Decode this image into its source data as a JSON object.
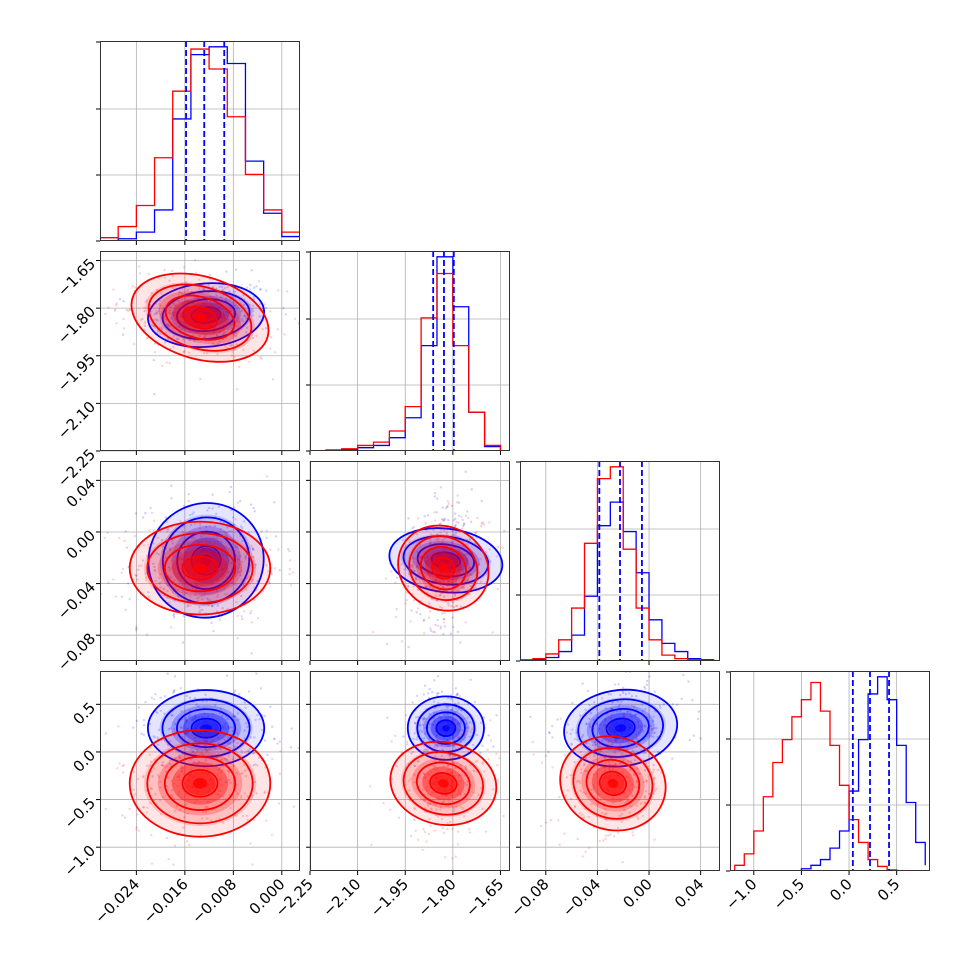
{
  "chart_data": {
    "type": "corner",
    "colors": {
      "blue": "#0000ff",
      "red": "#ff0000"
    },
    "grid": true,
    "parameters": [
      {
        "range": [
          -0.03,
          0.003
        ],
        "ticks": [
          "−0.024",
          "−0.016",
          "−0.008",
          "0.000"
        ],
        "tick_values": [
          -0.024,
          -0.016,
          -0.008,
          0.0
        ]
      },
      {
        "range": [
          -2.25,
          -1.62
        ],
        "ticks": [
          "−2.25",
          "−2.10",
          "−1.95",
          "−1.80",
          "−1.65"
        ],
        "tick_values": [
          -2.25,
          -2.1,
          -1.95,
          -1.8,
          -1.65
        ]
      },
      {
        "range": [
          -0.1,
          0.055
        ],
        "ticks": [
          "−0.08",
          "−0.04",
          "0.00",
          "0.04"
        ],
        "tick_values": [
          -0.08,
          -0.04,
          0.0,
          0.04
        ]
      },
      {
        "range": [
          -1.25,
          0.85
        ],
        "ticks": [
          "−1.0",
          "−0.5",
          "0.0",
          "0.5"
        ],
        "tick_values": [
          -1.0,
          -0.5,
          0.0,
          0.5
        ]
      }
    ],
    "quantile_lines": [
      [
        -0.0158,
        -0.0128,
        -0.0095
      ],
      [
        -1.862,
        -1.828,
        -1.797
      ],
      [
        -0.0385,
        -0.0225,
        -0.0055
      ],
      [
        0.04,
        0.22,
        0.42
      ]
    ],
    "histograms": [
      {
        "bins": [
          -0.03,
          -0.027,
          -0.024,
          -0.021,
          -0.018,
          -0.015,
          -0.012,
          -0.009,
          -0.006,
          -0.003,
          0.0,
          0.003
        ],
        "blue": [
          0,
          2,
          8,
          28,
          110,
          168,
          175,
          160,
          72,
          25,
          4
        ],
        "red": [
          3,
          13,
          32,
          75,
          135,
          173,
          155,
          112,
          60,
          28,
          8
        ]
      },
      {
        "bins": [
          -2.25,
          -2.2,
          -2.15,
          -2.1,
          -2.05,
          -2.0,
          -1.95,
          -1.9,
          -1.85,
          -1.8,
          -1.75,
          -1.7,
          -1.65
        ],
        "blue": [
          0,
          0,
          1,
          3,
          5,
          12,
          30,
          95,
          175,
          130,
          35,
          4
        ],
        "red": [
          0,
          1,
          2,
          5,
          8,
          18,
          40,
          120,
          160,
          95,
          35,
          5
        ]
      },
      {
        "bins": [
          -0.1,
          -0.09,
          -0.08,
          -0.07,
          -0.06,
          -0.05,
          -0.04,
          -0.03,
          -0.02,
          -0.01,
          0.0,
          0.01,
          0.02,
          0.03,
          0.04,
          0.05
        ],
        "blue": [
          0,
          1,
          3,
          8,
          22,
          55,
          115,
          135,
          110,
          75,
          35,
          15,
          8,
          2,
          1
        ],
        "red": [
          1,
          2,
          6,
          18,
          45,
          100,
          155,
          165,
          95,
          45,
          18,
          5,
          2,
          1,
          0
        ]
      },
      {
        "bins": [
          -1.2,
          -1.1,
          -1.0,
          -0.9,
          -0.8,
          -0.7,
          -0.6,
          -0.5,
          -0.4,
          -0.3,
          -0.2,
          -0.1,
          0.0,
          0.1,
          0.2,
          0.3,
          0.4,
          0.5,
          0.6,
          0.7,
          0.8
        ],
        "blue": [
          0,
          0,
          0,
          0,
          0,
          0,
          0,
          2,
          5,
          10,
          20,
          35,
          70,
          115,
          155,
          170,
          150,
          110,
          60,
          25,
          5
        ],
        "red": [
          5,
          15,
          35,
          65,
          95,
          115,
          135,
          150,
          165,
          140,
          110,
          75,
          45,
          25,
          10,
          4,
          1,
          0,
          0,
          0,
          0
        ]
      }
    ],
    "joint": {
      "blue_means": [
        -0.0125,
        -1.822,
        -0.022,
        0.25
      ],
      "blue_sd": [
        0.0048,
        0.05,
        0.022,
        0.2
      ],
      "red_means": [
        -0.0135,
        -1.83,
        -0.028,
        -0.33
      ],
      "red_sd": [
        0.0058,
        0.065,
        0.018,
        0.28
      ],
      "pair_corr": {
        "1-0": {
          "blue": 0.1,
          "red": -0.35
        },
        "2-0": {
          "blue": 0.1,
          "red": 0.0
        },
        "2-1": {
          "blue": 0.15,
          "red": 0.2
        },
        "3-0": {
          "blue": 0.0,
          "red": 0.0
        },
        "3-1": {
          "blue": 0.0,
          "red": 0.1
        },
        "3-2": {
          "blue": 0.1,
          "red": 0.1
        }
      }
    }
  }
}
